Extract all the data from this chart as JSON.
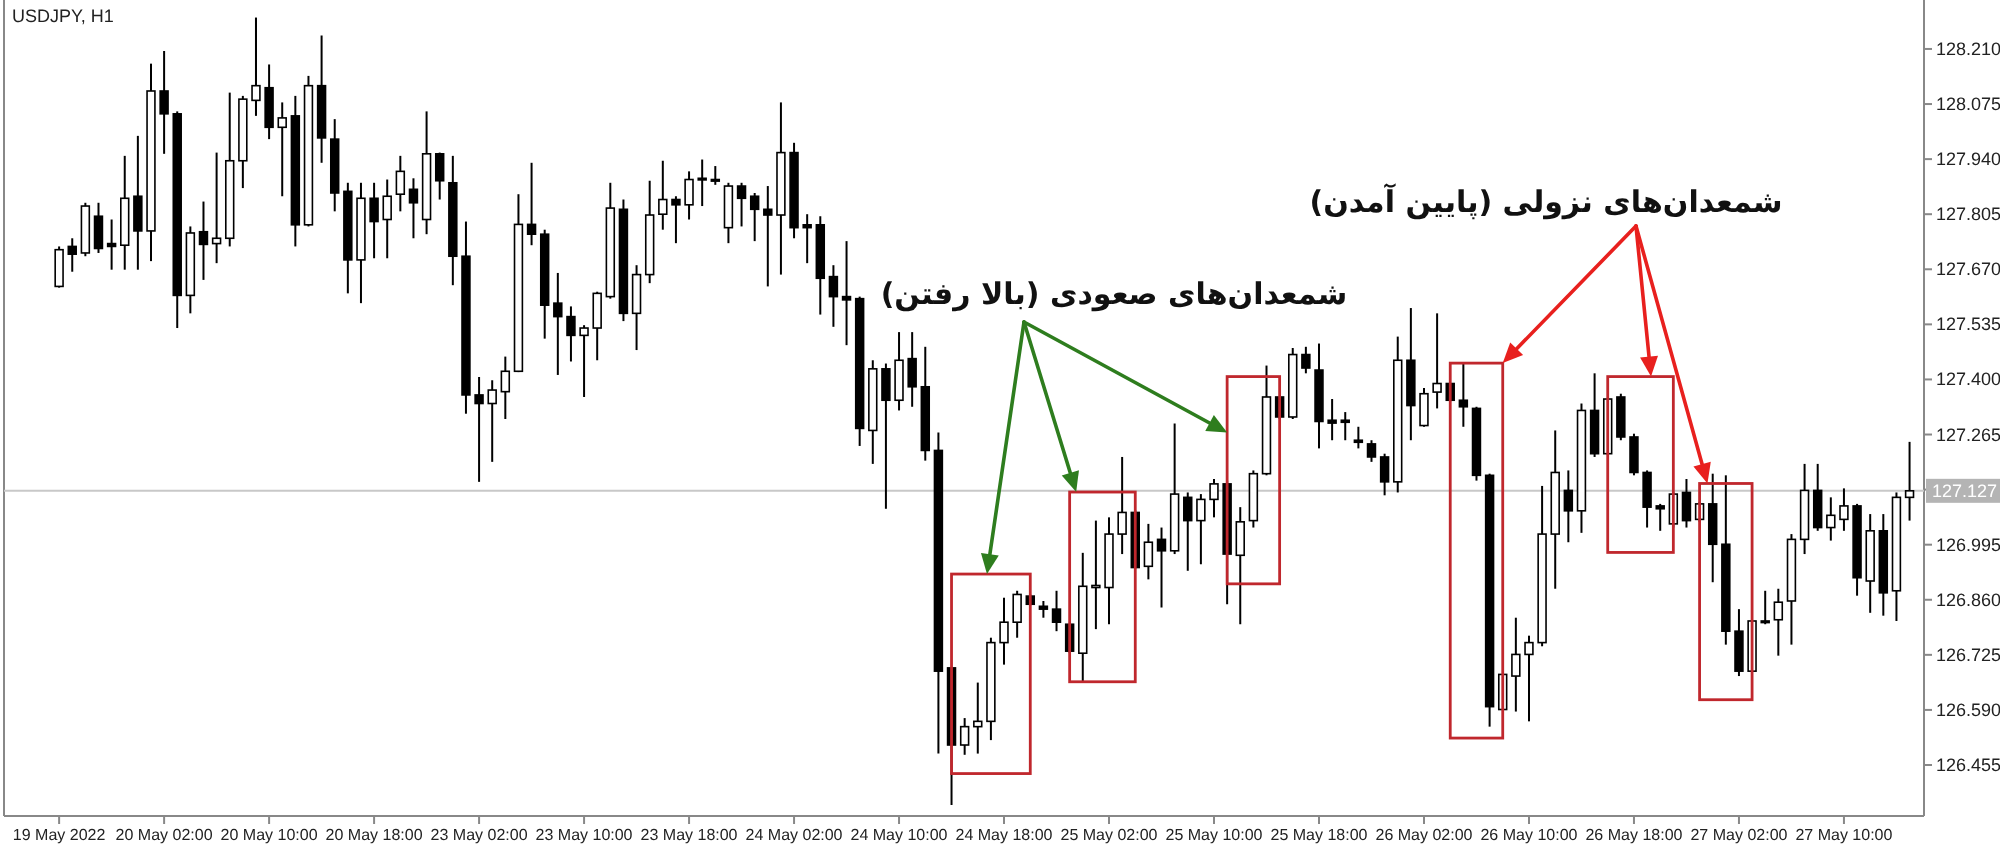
{
  "chart_data": {
    "type": "candlestick",
    "title": "USDJPY, H1",
    "categories": [
      "19 May 2022",
      null,
      null,
      null,
      null,
      null,
      null,
      null,
      "20 May 02:00",
      null,
      null,
      null,
      null,
      null,
      null,
      null,
      "20 May 10:00",
      null,
      null,
      null,
      null,
      null,
      null,
      null,
      "20 May 18:00",
      null,
      null,
      null,
      null,
      null,
      null,
      null,
      "23 May 02:00",
      null,
      null,
      null,
      null,
      null,
      null,
      null,
      "23 May 10:00",
      null,
      null,
      null,
      null,
      null,
      null,
      null,
      "23 May 18:00",
      null,
      null,
      null,
      null,
      null,
      null,
      null,
      "24 May 02:00",
      null,
      null,
      null,
      null,
      null,
      null,
      null,
      "24 May 10:00",
      null,
      null,
      null,
      null,
      null,
      null,
      null,
      "24 May 18:00",
      null,
      null,
      null,
      null,
      null,
      null,
      null,
      "25 May 02:00",
      null,
      null,
      null,
      null,
      null,
      null,
      null,
      "25 May 10:00",
      null,
      null,
      null,
      null,
      null,
      null,
      null,
      "25 May 18:00",
      null,
      null,
      null,
      null,
      null,
      null,
      null,
      "26 May 02:00",
      null,
      null,
      null,
      null,
      null,
      null,
      null,
      "26 May 10:00",
      null,
      null,
      null,
      null,
      null,
      null,
      null,
      "26 May 18:00",
      null,
      null,
      null,
      null,
      null,
      null,
      null,
      "27 May 02:00",
      null,
      null,
      null,
      null,
      null,
      null,
      null,
      "27 May 10:00",
      null,
      null,
      null,
      null,
      null
    ],
    "ohlc": [
      [
        127.628,
        127.726,
        127.625,
        127.718
      ],
      [
        127.726,
        127.746,
        127.664,
        127.707
      ],
      [
        127.71,
        127.833,
        127.702,
        127.825
      ],
      [
        127.8,
        127.833,
        127.71,
        127.721
      ],
      [
        127.733,
        127.792,
        127.669,
        127.726
      ],
      [
        127.729,
        127.948,
        127.669,
        127.844
      ],
      [
        127.849,
        127.997,
        127.669,
        127.764
      ],
      [
        127.764,
        128.174,
        127.69,
        128.107
      ],
      [
        128.107,
        128.205,
        127.953,
        128.051
      ],
      [
        128.051,
        128.057,
        127.526,
        127.606
      ],
      [
        127.606,
        127.775,
        127.562,
        127.759
      ],
      [
        127.762,
        127.836,
        127.644,
        127.731
      ],
      [
        127.733,
        127.956,
        127.685,
        127.746
      ],
      [
        127.746,
        128.103,
        127.726,
        127.936
      ],
      [
        127.936,
        128.095,
        127.869,
        128.087
      ],
      [
        128.084,
        128.287,
        128.046,
        128.12
      ],
      [
        128.115,
        128.172,
        127.989,
        128.018
      ],
      [
        128.018,
        128.079,
        127.849,
        128.041
      ],
      [
        128.046,
        128.095,
        127.726,
        127.779
      ],
      [
        127.779,
        128.144,
        127.775,
        128.12
      ],
      [
        128.12,
        128.243,
        127.931,
        127.992
      ],
      [
        127.989,
        128.038,
        127.812,
        127.857
      ],
      [
        127.861,
        127.882,
        127.611,
        127.693
      ],
      [
        127.693,
        127.882,
        127.587,
        127.844
      ],
      [
        127.844,
        127.882,
        127.697,
        127.787
      ],
      [
        127.792,
        127.89,
        127.697,
        127.849
      ],
      [
        127.854,
        127.948,
        127.812,
        127.91
      ],
      [
        127.866,
        127.893,
        127.746,
        127.833
      ],
      [
        127.792,
        128.057,
        127.756,
        127.953
      ],
      [
        127.953,
        127.956,
        127.841,
        127.887
      ],
      [
        127.882,
        127.948,
        127.631,
        127.702
      ],
      [
        127.702,
        127.787,
        127.316,
        127.362
      ],
      [
        127.362,
        127.406,
        127.149,
        127.341
      ],
      [
        127.341,
        127.398,
        127.198,
        127.374
      ],
      [
        127.37,
        127.456,
        127.303,
        127.42
      ],
      [
        127.42,
        127.854,
        127.418,
        127.78
      ],
      [
        127.78,
        127.931,
        127.729,
        127.756
      ],
      [
        127.756,
        127.767,
        127.5,
        127.582
      ],
      [
        127.587,
        127.661,
        127.411,
        127.554
      ],
      [
        127.554,
        127.579,
        127.444,
        127.508
      ],
      [
        127.508,
        127.533,
        127.357,
        127.526
      ],
      [
        127.526,
        127.615,
        127.447,
        127.611
      ],
      [
        127.603,
        127.882,
        127.598,
        127.82
      ],
      [
        127.817,
        127.841,
        127.543,
        127.562
      ],
      [
        127.562,
        127.68,
        127.472,
        127.657
      ],
      [
        127.657,
        127.887,
        127.636,
        127.803
      ],
      [
        127.805,
        127.936,
        127.767,
        127.841
      ],
      [
        127.841,
        127.849,
        127.734,
        127.828
      ],
      [
        127.828,
        127.91,
        127.792,
        127.89
      ],
      [
        127.89,
        127.939,
        127.825,
        127.893
      ],
      [
        127.887,
        127.923,
        127.877,
        127.89
      ],
      [
        127.772,
        127.882,
        127.734,
        127.874
      ],
      [
        127.874,
        127.882,
        127.775,
        127.844
      ],
      [
        127.849,
        127.857,
        127.739,
        127.817
      ],
      [
        127.817,
        127.874,
        127.628,
        127.803
      ],
      [
        127.803,
        128.079,
        127.657,
        127.956
      ],
      [
        127.956,
        127.98,
        127.746,
        127.772
      ],
      [
        127.779,
        127.805,
        127.685,
        127.772
      ],
      [
        127.779,
        127.8,
        127.559,
        127.648
      ],
      [
        127.652,
        127.68,
        127.529,
        127.603
      ],
      [
        127.603,
        127.739,
        127.484,
        127.595
      ],
      [
        127.598,
        127.603,
        127.237,
        127.28
      ],
      [
        127.275,
        127.447,
        127.193,
        127.426
      ],
      [
        127.426,
        127.439,
        127.083,
        127.349
      ],
      [
        127.349,
        127.516,
        127.324,
        127.447
      ],
      [
        127.451,
        127.516,
        127.333,
        127.382
      ],
      [
        127.382,
        127.48,
        127.201,
        127.226
      ],
      [
        127.226,
        127.27,
        126.483,
        126.685
      ],
      [
        126.693,
        126.693,
        126.357,
        126.504
      ],
      [
        126.504,
        126.57,
        126.48,
        126.549
      ],
      [
        126.549,
        126.657,
        126.483,
        126.562
      ],
      [
        126.562,
        126.767,
        126.516,
        126.755
      ],
      [
        126.755,
        126.865,
        126.701,
        126.805
      ],
      [
        126.805,
        126.882,
        126.767,
        126.873
      ],
      [
        126.869,
        126.873,
        126.846,
        126.849
      ],
      [
        126.844,
        126.857,
        126.816,
        126.837
      ],
      [
        126.837,
        126.882,
        126.783,
        126.805
      ],
      [
        126.8,
        126.8,
        126.729,
        126.734
      ],
      [
        126.729,
        126.975,
        126.657,
        126.893
      ],
      [
        126.89,
        127.054,
        126.788,
        126.895
      ],
      [
        126.89,
        127.062,
        126.8,
        127.021
      ],
      [
        127.021,
        127.21,
        126.972,
        127.074
      ],
      [
        127.074,
        127.079,
        126.936,
        126.939
      ],
      [
        126.942,
        127.046,
        126.91,
        127.001
      ],
      [
        127.008,
        127.037,
        126.841,
        126.98
      ],
      [
        126.98,
        127.292,
        126.972,
        127.119
      ],
      [
        127.111,
        127.123,
        126.931,
        127.054
      ],
      [
        127.054,
        127.119,
        126.947,
        127.106
      ],
      [
        127.106,
        127.156,
        127.062,
        127.144
      ],
      [
        127.144,
        127.152,
        126.849,
        126.972
      ],
      [
        126.969,
        127.087,
        126.8,
        127.051
      ],
      [
        127.054,
        127.177,
        127.037,
        127.169
      ],
      [
        127.169,
        127.434,
        127.165,
        127.357
      ],
      [
        127.357,
        127.357,
        127.303,
        127.308
      ],
      [
        127.308,
        127.477,
        127.303,
        127.461
      ],
      [
        127.461,
        127.48,
        127.415,
        127.428
      ],
      [
        127.423,
        127.488,
        127.231,
        127.297
      ],
      [
        127.3,
        127.352,
        127.251,
        127.293
      ],
      [
        127.3,
        127.32,
        127.251,
        127.295
      ],
      [
        127.251,
        127.284,
        127.231,
        127.246
      ],
      [
        127.242,
        127.251,
        127.198,
        127.21
      ],
      [
        127.21,
        127.218,
        127.116,
        127.149
      ],
      [
        127.149,
        127.505,
        127.123,
        127.447
      ],
      [
        127.447,
        127.575,
        127.251,
        127.336
      ],
      [
        127.287,
        127.379,
        127.284,
        127.365
      ],
      [
        127.369,
        127.562,
        127.329,
        127.39
      ],
      [
        127.39,
        127.39,
        127.346,
        127.349
      ],
      [
        127.349,
        127.439,
        127.284,
        127.333
      ],
      [
        127.329,
        127.333,
        127.152,
        127.165
      ],
      [
        127.165,
        127.169,
        126.549,
        126.598
      ],
      [
        126.591,
        126.677,
        126.591,
        126.677
      ],
      [
        126.673,
        126.816,
        126.586,
        126.726
      ],
      [
        126.726,
        126.772,
        126.562,
        126.755
      ],
      [
        126.755,
        127.139,
        126.746,
        127.021
      ],
      [
        127.021,
        127.275,
        126.887,
        127.172
      ],
      [
        127.128,
        127.177,
        127.001,
        127.078
      ],
      [
        127.078,
        127.341,
        127.024,
        127.324
      ],
      [
        127.324,
        127.415,
        127.21,
        127.218
      ],
      [
        127.218,
        127.352,
        127.215,
        127.352
      ],
      [
        127.357,
        127.365,
        127.251,
        127.259
      ],
      [
        127.259,
        127.267,
        127.165,
        127.172
      ],
      [
        127.172,
        127.177,
        127.037,
        127.087
      ],
      [
        127.09,
        127.095,
        127.029,
        127.083
      ],
      [
        127.046,
        127.123,
        127.037,
        127.119
      ],
      [
        127.123,
        127.156,
        127.037,
        127.054
      ],
      [
        127.057,
        127.1,
        127.051,
        127.095
      ],
      [
        127.095,
        127.169,
        126.903,
        126.996
      ],
      [
        126.996,
        127.165,
        126.75,
        126.783
      ],
      [
        126.783,
        126.837,
        126.673,
        126.685
      ],
      [
        126.685,
        126.808,
        126.685,
        126.808
      ],
      [
        126.808,
        126.882,
        126.8,
        126.805
      ],
      [
        126.811,
        126.887,
        126.723,
        126.854
      ],
      [
        126.857,
        127.021,
        126.75,
        127.008
      ],
      [
        127.008,
        127.193,
        126.972,
        127.128
      ],
      [
        127.128,
        127.193,
        127.029,
        127.037
      ],
      [
        127.037,
        127.111,
        127.005,
        127.067
      ],
      [
        127.057,
        127.133,
        127.029,
        127.09
      ],
      [
        127.09,
        127.095,
        126.87,
        126.914
      ],
      [
        126.906,
        127.07,
        126.828,
        127.029
      ],
      [
        127.029,
        127.07,
        126.821,
        126.877
      ],
      [
        126.882,
        127.123,
        126.808,
        127.111
      ],
      [
        127.111,
        127.247,
        127.054,
        127.127
      ]
    ],
    "ylim": [
      126.33,
      128.33
    ],
    "yticks": [
      {
        "value": 126.455,
        "label": "126.455"
      },
      {
        "value": 126.59,
        "label": "126.590"
      },
      {
        "value": 126.725,
        "label": "126.725"
      },
      {
        "value": 126.86,
        "label": "126.860"
      },
      {
        "value": 126.995,
        "label": "126.995"
      },
      {
        "value": 127.13,
        "label": null
      },
      {
        "value": 127.265,
        "label": "127.265"
      },
      {
        "value": 127.4,
        "label": "127.400"
      },
      {
        "value": 127.535,
        "label": "127.535"
      },
      {
        "value": 127.67,
        "label": "127.670"
      },
      {
        "value": 127.805,
        "label": "127.805"
      },
      {
        "value": 127.94,
        "label": "127.940"
      },
      {
        "value": 128.075,
        "label": "128.075"
      },
      {
        "value": 128.21,
        "label": "128.210"
      }
    ],
    "ref_lines": [
      {
        "axis": "y",
        "value": 127.127,
        "label": "127.127",
        "color": "#c8c8c8"
      }
    ],
    "annotations": [
      "شمعدان‌های صعودی (بالا رفتن)",
      "شمعدان‌های نزولی (پایین آمدن)"
    ]
  }
}
